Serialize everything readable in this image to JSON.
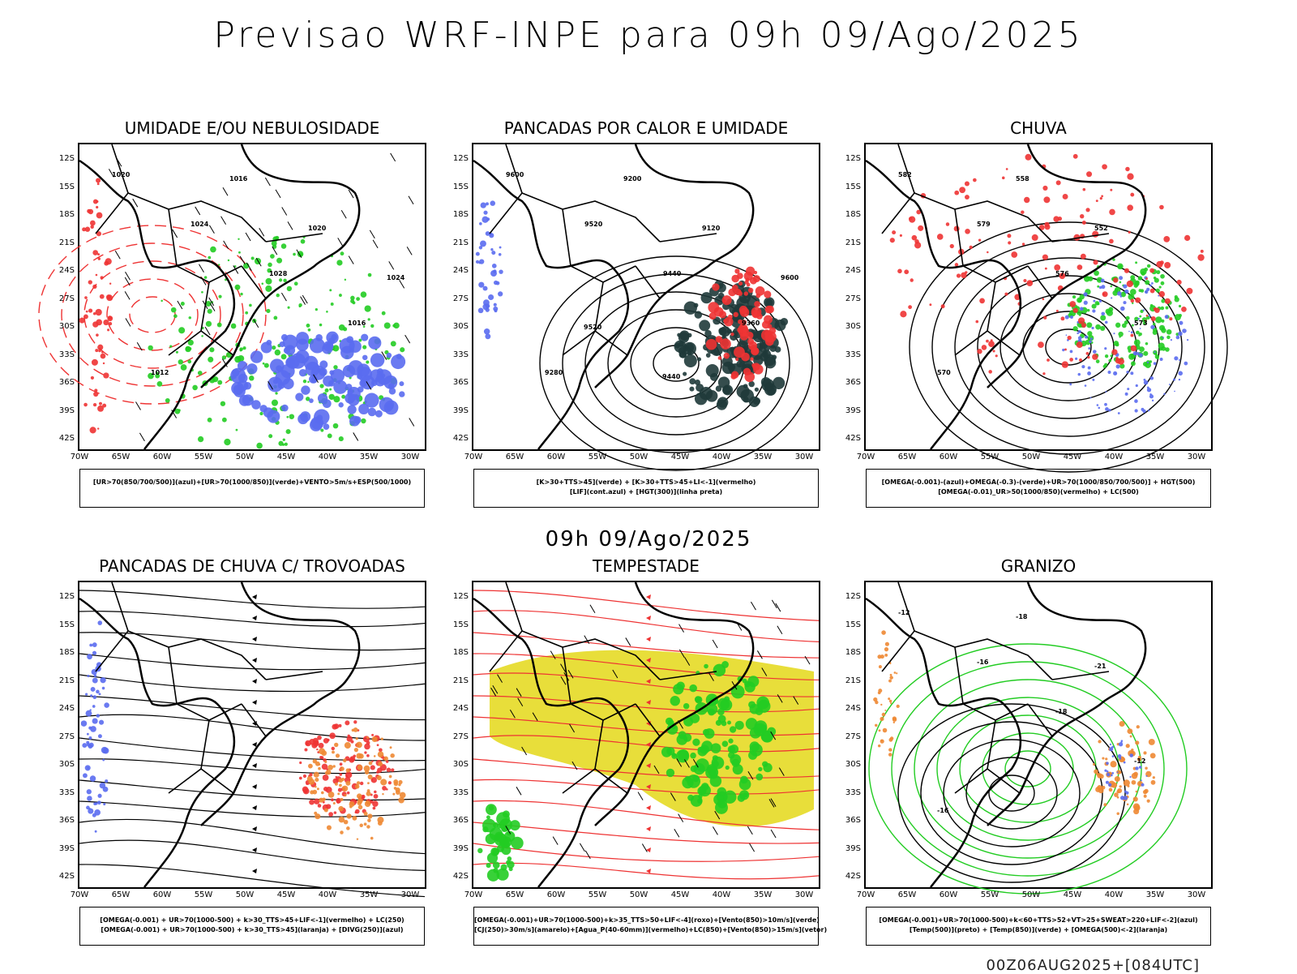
{
  "main_title": "Previsao WRF-INPE  para 09h 09/Ago/2025",
  "mid_time": "09h 09/Ago/2025",
  "stamp": "00Z06AUG2025+[084UTC]",
  "lat_labels": [
    "12S",
    "15S",
    "18S",
    "21S",
    "24S",
    "27S",
    "30S",
    "33S",
    "36S",
    "39S",
    "42S"
  ],
  "lon_labels": [
    "70W",
    "65W",
    "60W",
    "55W",
    "50W",
    "45W",
    "40W",
    "35W",
    "30W"
  ],
  "colors": {
    "blue": "#5a6cf0",
    "green": "#22cc22",
    "red": "#ee3333",
    "orange": "#ee8833",
    "yellow": "#e8de3a",
    "dark": "#1f3a3a",
    "contour": "#000000"
  },
  "panels": [
    {
      "title": "UMIDADE E/OU NEBULOSIDADE",
      "legend": [
        "[UR>70(850/700/500)](azul)+[UR>70(1000/850)](verde)+VENTO>5m/s+ESP(500/1000)"
      ],
      "contour_labels": [
        "1020",
        "1024",
        "1028",
        "1016",
        "1012",
        "1016",
        "1020",
        "1024"
      ]
    },
    {
      "title": "PANCADAS POR CALOR E UMIDADE",
      "legend": [
        "[K>30+TTS>45](verde) + [K>30+TTS>45+LI<-1](vermelho)",
        "[LIF](cont.azul) + [HGT(300)](linha preta)"
      ],
      "contour_labels": [
        "9600",
        "9520",
        "9440",
        "9360",
        "9280",
        "9200",
        "9120",
        "9600",
        "9520",
        "9440"
      ]
    },
    {
      "title": "CHUVA",
      "legend": [
        "[OMEGA(-0.001)-(azul)+OMEGA(-0.3)-(verde)+UR>70(1000/850/700/500)] + HGT(500)",
        "[OMEGA(-0.01)_UR>50(1000/850)(vermelho) + LC(500)"
      ],
      "contour_labels": [
        "582",
        "579",
        "576",
        "573",
        "570",
        "558",
        "552"
      ]
    },
    {
      "title": "PANCADAS DE CHUVA C/ TROVOADAS",
      "legend": [
        "[OMEGA(-0.001) + UR>70(1000-500) + k>30_TTS>45+LIF<-1](vermelho) + LC(250)",
        "[OMEGA(-0.001) + UR>70(1000-500) + k>30_TTS>45](laranja) + [DIVG(250)](azul)"
      ],
      "contour_labels": []
    },
    {
      "title": "TEMPESTADE",
      "legend": [
        "[OMEGA(-0.001)+UR>70(1000-500)+k>35_TTS>50+LIF<-4](roxo)+[Vento(850)>10m/s](verde)",
        "[CJ(250)>30m/s](amarelo)+[Agua_P(40-60mm)](vermelho)+LC(850)+[Vento(850)>15m/s](vetor)"
      ],
      "contour_labels": []
    },
    {
      "title": "GRANIZO",
      "legend": [
        "[OMEGA(-0.001)+UR>70(1000-500)+k<60+TTS>52+VT>25+SWEAT>220+LIF<-2](azul)",
        "[Temp(500)](preto) + [Temp(850)](verde) + [OMEGA(500)<-2](laranja)"
      ],
      "contour_labels": [
        "-12",
        "-16",
        "-18",
        "-12",
        "-16",
        "-18",
        "-21"
      ]
    }
  ]
}
